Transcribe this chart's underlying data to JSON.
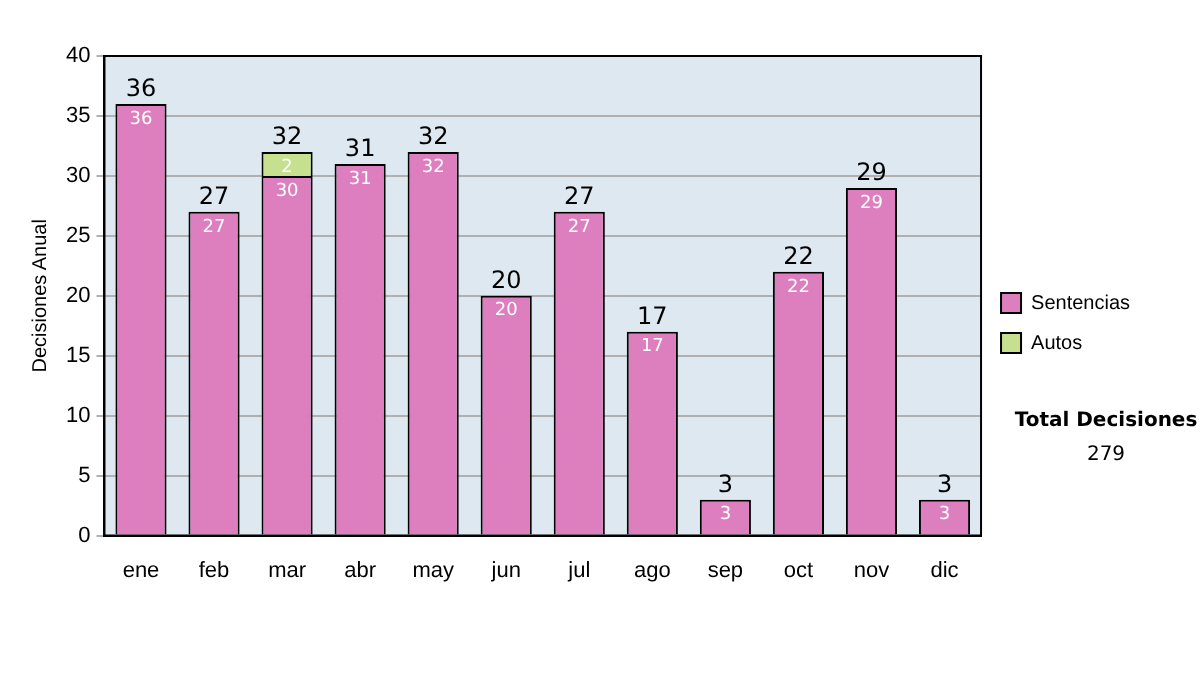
{
  "chart_data": {
    "type": "bar",
    "stacked": true,
    "ylabel": "Decisiones Anual",
    "categories": [
      "ene",
      "feb",
      "mar",
      "abr",
      "may",
      "jun",
      "jul",
      "ago",
      "sep",
      "oct",
      "nov",
      "dic"
    ],
    "series": [
      {
        "name": "Sentencias",
        "color": "#dd7fbf",
        "values": [
          36,
          27,
          30,
          31,
          32,
          20,
          27,
          17,
          3,
          22,
          29,
          3
        ],
        "value_labels": [
          "36",
          "27",
          "30",
          "31",
          "32",
          "20",
          "27",
          "17",
          "3",
          "22",
          "29",
          "3"
        ]
      },
      {
        "name": "Autos",
        "color": "#c6e08f",
        "values": [
          null,
          null,
          2,
          null,
          null,
          null,
          null,
          null,
          null,
          null,
          null,
          null
        ],
        "value_labels": [
          null,
          null,
          "2",
          null,
          null,
          null,
          null,
          null,
          null,
          null,
          null,
          null
        ]
      }
    ],
    "totals": [
      "36",
      "27",
      "32",
      "31",
      "32",
      "20",
      "27",
      "17",
      "3",
      "22",
      "29",
      "3"
    ],
    "ylim": [
      0,
      40
    ],
    "yticks": [
      0,
      5,
      10,
      15,
      20,
      25,
      30,
      35,
      40
    ],
    "grid": "y",
    "legend": "right",
    "annotations": [
      "Total Decisiones",
      "279"
    ]
  }
}
